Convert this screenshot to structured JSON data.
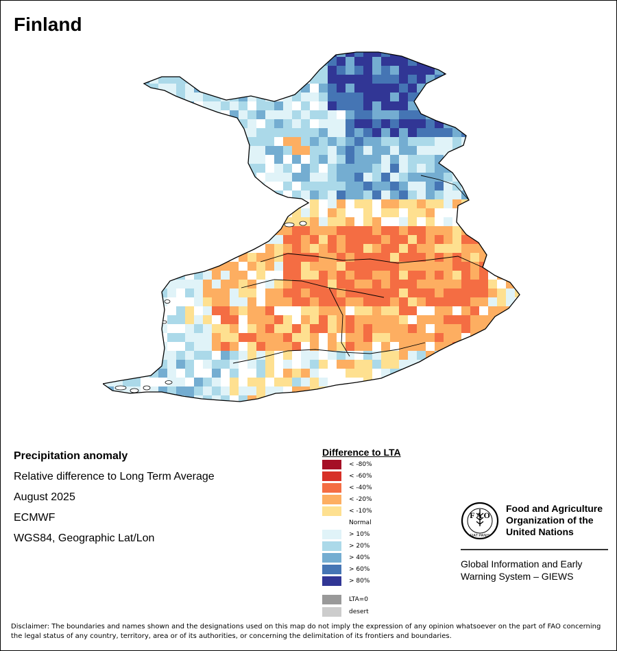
{
  "map": {
    "title": "Finland",
    "region": "Finland",
    "colors": {
      "n80": "#a50f26",
      "n60": "#d73027",
      "n40": "#f46d43",
      "n20": "#fdae61",
      "n10": "#fee090",
      "normal": "#ffffff",
      "p10": "#e0f3f8",
      "p20": "#abd9e9",
      "p40": "#74add1",
      "p60": "#4575b4",
      "p80": "#313695",
      "lta0": "#999999",
      "desert": "#cccccc"
    }
  },
  "info": {
    "product": "Precipitation anomaly",
    "measure": "Relative difference to Long Term Average",
    "period": "August 2025",
    "source": "ECMWF",
    "projection": "WGS84, Geographic Lat/Lon"
  },
  "legend": {
    "title": "Difference to LTA",
    "classes": [
      {
        "key": "n80",
        "label": "< -80%"
      },
      {
        "key": "n60",
        "label": "< -60%"
      },
      {
        "key": "n40",
        "label": "< -40%"
      },
      {
        "key": "n20",
        "label": "< -20%"
      },
      {
        "key": "n10",
        "label": "< -10%"
      },
      {
        "key": "normal",
        "label": "Normal"
      },
      {
        "key": "p10",
        "label": "> 10%"
      },
      {
        "key": "p20",
        "label": "> 20%"
      },
      {
        "key": "p40",
        "label": "> 40%"
      },
      {
        "key": "p60",
        "label": "> 60%"
      },
      {
        "key": "p80",
        "label": "> 80%"
      },
      {
        "key": "lta0",
        "label": "LTA=0"
      },
      {
        "key": "desert",
        "label": "desert"
      }
    ]
  },
  "org": {
    "emblem_text": "FIAT PANIS",
    "name": "Food and Agriculture Organization of the United Nations",
    "system": "Global Information and Early Warning System – GIEWS"
  },
  "disclaimer": "Disclaimer: The boundaries and names shown and the designations used on this map do not imply the expression of any opinion whatsoever on the part of FAO concerning the legal status of any country, territory, area or of its authorities, or concerning the delimitation of its frontiers and boundaries."
}
